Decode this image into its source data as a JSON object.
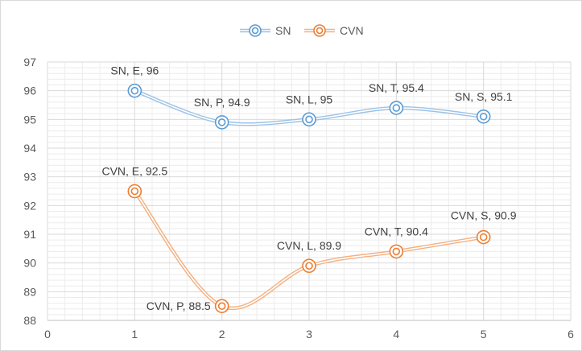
{
  "chart_data": {
    "type": "line",
    "smooth": true,
    "title": "",
    "xlabel": "",
    "ylabel": "",
    "xlim": [
      0,
      6
    ],
    "ylim": [
      88,
      97
    ],
    "x_ticks": [
      0,
      1,
      2,
      3,
      4,
      5,
      6
    ],
    "y_ticks": [
      88,
      89,
      90,
      91,
      92,
      93,
      94,
      95,
      96,
      97
    ],
    "grid": {
      "major": true,
      "minor": true
    },
    "legend_position": "top-center",
    "series": [
      {
        "name": "SN",
        "color": "#9dc3e6",
        "marker_color": "#5b9bd5",
        "x": [
          1,
          2,
          3,
          4,
          5
        ],
        "y": [
          96,
          94.9,
          95,
          95.4,
          95.1
        ],
        "labels": [
          "SN, E, 96",
          "SN, P, 94.9",
          "SN, L, 95",
          "SN, T, 95.4",
          "SN, S, 95.1"
        ]
      },
      {
        "name": "CVN",
        "color": "#f4b183",
        "marker_color": "#ed7d31",
        "x": [
          1,
          2,
          3,
          4,
          5
        ],
        "y": [
          92.5,
          88.5,
          89.9,
          90.4,
          90.9
        ],
        "labels": [
          "CVN, E, 92.5",
          "CVN, P, 88.5",
          "CVN, L, 89.9",
          "CVN, T, 90.4",
          "CVN, S, 90.9"
        ]
      }
    ]
  }
}
